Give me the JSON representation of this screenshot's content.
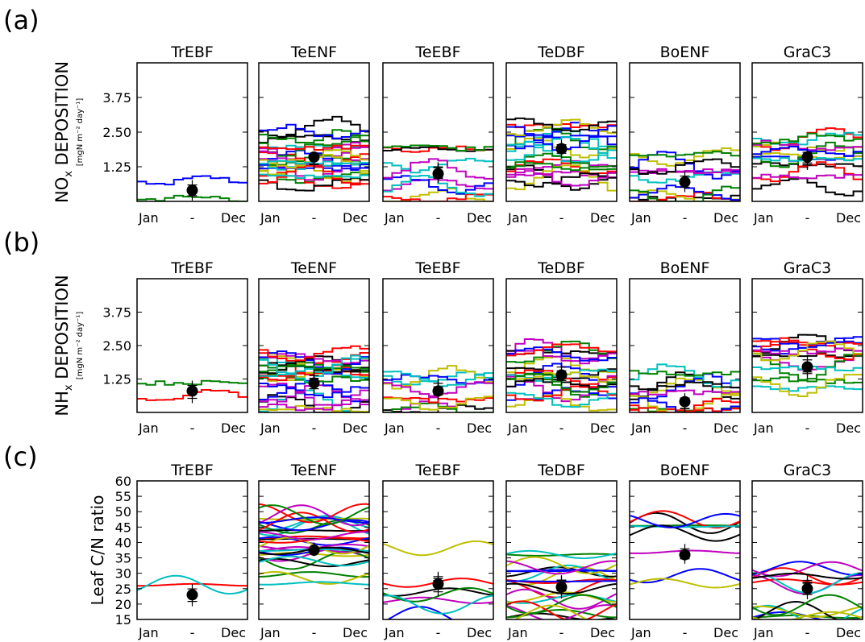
{
  "figure": {
    "panel_titles": [
      "TrEBF",
      "TeENF",
      "TeEBF",
      "TeDBF",
      "BoENF",
      "GraC3"
    ],
    "x_tick_labels": [
      "Jan",
      "-",
      "Dec"
    ],
    "colors": [
      "#0000ff",
      "#008000",
      "#ff0000",
      "#00bfbf",
      "#bf00bf",
      "#bfbf00",
      "#000000"
    ]
  },
  "chart_data": [
    {
      "type": "line",
      "row_label": "(a)",
      "ylabel": "NO",
      "ylabel_sub": "x",
      "ylabel_rest": " DEPOSITION",
      "ylabel_units": "[mgN m⁻² day⁻¹]",
      "ylim": [
        0,
        5.0
      ],
      "yticks": [
        1.25,
        2.5,
        3.75
      ],
      "ytick_labels": [
        "1.25",
        "2.50",
        "3.75"
      ],
      "panels": [
        {
          "title": "TrEBF",
          "mean": 0.4,
          "series_count": 2
        },
        {
          "title": "TeENF",
          "mean": 1.6,
          "series_count": 24
        },
        {
          "title": "TeEBF",
          "mean": 1.0,
          "series_count": 10
        },
        {
          "title": "TeDBF",
          "mean": 1.9,
          "series_count": 20
        },
        {
          "title": "BoENF",
          "mean": 0.7,
          "series_count": 12
        },
        {
          "title": "GraC3",
          "mean": 1.6,
          "series_count": 14
        }
      ]
    },
    {
      "type": "line",
      "row_label": "(b)",
      "ylabel": "NH",
      "ylabel_sub": "x",
      "ylabel_rest": " DEPOSITION",
      "ylabel_units": "[mgN m⁻² day⁻¹]",
      "ylim": [
        0,
        5.0
      ],
      "yticks": [
        1.25,
        2.5,
        3.75
      ],
      "ytick_labels": [
        "1.25",
        "2.50",
        "3.75"
      ],
      "panels": [
        {
          "title": "TrEBF",
          "mean": 0.8,
          "series_count": 2
        },
        {
          "title": "TeENF",
          "mean": 1.1,
          "series_count": 24
        },
        {
          "title": "TeEBF",
          "mean": 0.8,
          "series_count": 10
        },
        {
          "title": "TeDBF",
          "mean": 1.4,
          "series_count": 20
        },
        {
          "title": "BoENF",
          "mean": 0.4,
          "series_count": 12
        },
        {
          "title": "GraC3",
          "mean": 1.7,
          "series_count": 14
        }
      ]
    },
    {
      "type": "line",
      "row_label": "(c)",
      "ylabel": "Leaf C/N ratio",
      "ylabel_sub": "",
      "ylabel_rest": "",
      "ylabel_units": "",
      "ylim": [
        15,
        60
      ],
      "yticks": [
        15,
        20,
        25,
        30,
        35,
        40,
        45,
        50,
        55,
        60
      ],
      "ytick_labels": [
        "15",
        "20",
        "25",
        "30",
        "35",
        "40",
        "45",
        "50",
        "55",
        "60"
      ],
      "panels": [
        {
          "title": "TrEBF",
          "mean": 23,
          "series_count": 2
        },
        {
          "title": "TeENF",
          "mean": 37.5,
          "series_count": 30
        },
        {
          "title": "TeEBF",
          "mean": 26.5,
          "series_count": 7
        },
        {
          "title": "TeDBF",
          "mean": 25.5,
          "series_count": 22
        },
        {
          "title": "BoENF",
          "mean": 36,
          "series_count": 9
        },
        {
          "title": "GraC3",
          "mean": 25,
          "series_count": 14
        }
      ]
    }
  ]
}
